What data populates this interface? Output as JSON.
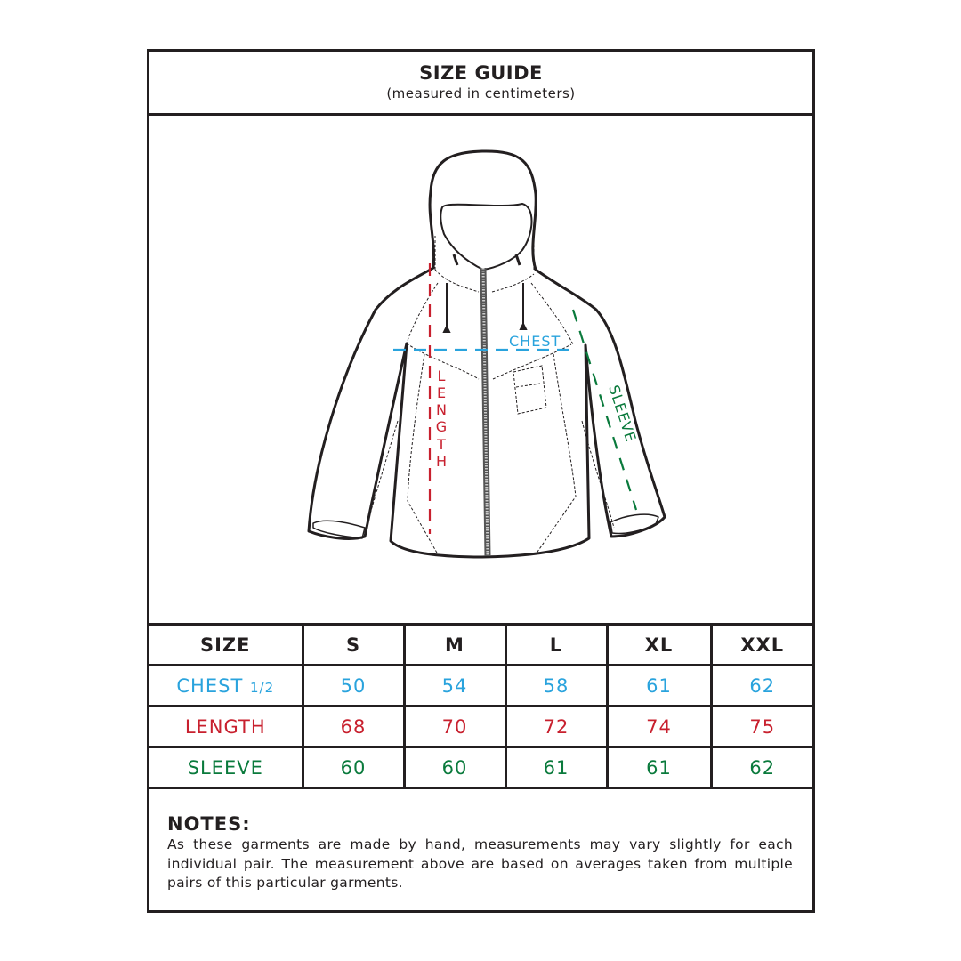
{
  "header": {
    "title": "SIZE GUIDE",
    "subtitle": "(measured in centimeters)"
  },
  "diagram": {
    "chest_label": "CHEST",
    "length_letters": [
      "L",
      "E",
      "N",
      "G",
      "T",
      "H"
    ],
    "sleeve_label": "SLEEVE"
  },
  "colors": {
    "chest": "#29a3dd",
    "length": "#c8202e",
    "sleeve": "#0a7a3c",
    "outline": "#231f20"
  },
  "table": {
    "headers": [
      "SIZE",
      "S",
      "M",
      "L",
      "XL",
      "XXL"
    ],
    "rows": [
      {
        "label": "CHEST",
        "suffix": "1/2",
        "values": [
          "50",
          "54",
          "58",
          "61",
          "62"
        ]
      },
      {
        "label": "LENGTH",
        "values": [
          "68",
          "70",
          "72",
          "74",
          "75"
        ]
      },
      {
        "label": "SLEEVE",
        "values": [
          "60",
          "60",
          "61",
          "61",
          "62"
        ]
      }
    ]
  },
  "notes": {
    "heading": "NOTES:",
    "text": "As these garments are made by hand, measurements may vary slightly for each individual pair. The measurement above are based on averages taken from multiple pairs of this particular garments."
  }
}
